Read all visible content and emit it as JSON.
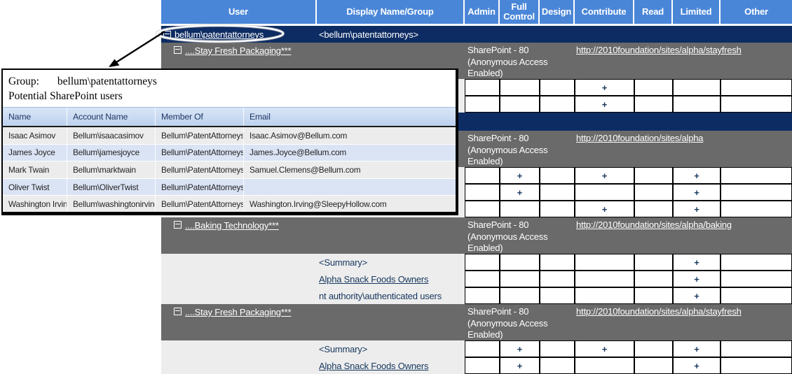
{
  "header": {
    "columns": [
      "User",
      "Display Name/Group",
      "Admin",
      "Full Control",
      "Design",
      "Contribute",
      "Read",
      "Limited",
      "Other"
    ]
  },
  "rows": [
    {
      "kind": "group",
      "user": "bellum\\patentattorneys",
      "display": "<bellum\\patentattorneys>",
      "circled": true
    },
    {
      "kind": "site",
      "name": "....Stay Fresh Packaging***",
      "server": "SharePoint - 80 (Anonymous Access Enabled)",
      "url": "http://2010foundation/sites/alpha/stayfresh"
    },
    {
      "kind": "perm",
      "display": "",
      "link": false,
      "perms": [
        "",
        "",
        "",
        "+",
        "",
        "",
        ""
      ]
    },
    {
      "kind": "perm",
      "display": "",
      "link": false,
      "perms": [
        "",
        "",
        "",
        "+",
        "",
        "",
        ""
      ]
    },
    {
      "kind": "group",
      "user": "",
      "display": "",
      "circled": false
    },
    {
      "kind": "site",
      "name": "",
      "server": "SharePoint - 80 (Anonymous Access Enabled)",
      "url": "http://2010foundation/sites/alpha"
    },
    {
      "kind": "perm",
      "display": "",
      "link": false,
      "perms": [
        "",
        "+",
        "",
        "+",
        "",
        "+",
        ""
      ]
    },
    {
      "kind": "perm",
      "display": "",
      "link": false,
      "perms": [
        "",
        "+",
        "",
        "",
        "",
        "+",
        ""
      ]
    },
    {
      "kind": "perm",
      "display": "",
      "link": false,
      "perms": [
        "",
        "",
        "",
        "+",
        "",
        "+",
        ""
      ]
    },
    {
      "kind": "site",
      "name": "....Baking Technology***",
      "server": "SharePoint - 80 (Anonymous Access Enabled)",
      "url": "http://2010foundation/sites/alpha/baking"
    },
    {
      "kind": "perm",
      "display": "<Summary>",
      "link": false,
      "perms": [
        "",
        "",
        "",
        "",
        "",
        "+",
        ""
      ]
    },
    {
      "kind": "perm",
      "display": "Alpha Snack Foods Owners",
      "link": true,
      "perms": [
        "",
        "",
        "",
        "",
        "",
        "+",
        ""
      ]
    },
    {
      "kind": "perm",
      "display": "nt authority\\authenticated users",
      "link": false,
      "perms": [
        "",
        "",
        "",
        "",
        "",
        "+",
        ""
      ]
    },
    {
      "kind": "site",
      "name": "....Stay Fresh Packaging***",
      "server": "SharePoint - 80 (Anonymous Access Enabled)",
      "url": "http://2010foundation/sites/alpha/stayfresh"
    },
    {
      "kind": "perm",
      "display": "<Summary>",
      "link": false,
      "perms": [
        "",
        "+",
        "",
        "+",
        "",
        "+",
        ""
      ]
    },
    {
      "kind": "perm",
      "display": "Alpha Snack Foods Owners",
      "link": true,
      "perms": [
        "",
        "+",
        "",
        "",
        "",
        "+",
        ""
      ]
    }
  ],
  "popup": {
    "title_label": "Group:",
    "title_value": "bellum\\patentattorneys",
    "subtitle": "Potential SharePoint users",
    "columns": [
      "Name",
      "Account Name",
      "Member Of",
      "Email"
    ],
    "members": [
      [
        "Isaac Asimov",
        "Bellum\\isaacasimov",
        "Bellum\\PatentAttorneys",
        "Isaac.Asimov@Bellum.com"
      ],
      [
        "James Joyce",
        "Bellum\\jamesjoyce",
        "Bellum\\PatentAttorneys",
        "James.Joyce@Bellum.com"
      ],
      [
        "Mark Twain",
        "Bellum\\marktwain",
        "Bellum\\PatentAttorneys",
        "Samuel.Clemens@Bellum.com"
      ],
      [
        "Oliver Twist",
        "Bellum\\OliverTwist",
        "Bellum\\PatentAttorneys",
        ""
      ],
      [
        "Washington Irving",
        "Bellum\\washingtonirving",
        "Bellum\\PatentAttorneys",
        "Washington.Irving@SleepyHollow.com"
      ]
    ]
  },
  "colors": {
    "header_blue": "#4a86d8",
    "group_row_navy": "#0d2c63",
    "site_row_gray": "#6a6a6a",
    "summary_row_gray": "#ededed",
    "plus_mark": "#17375e",
    "popup_row_gray": "#edecec",
    "popup_row_blue": "#dbe4f5",
    "popup_header_blue": "#c5d7ef"
  }
}
